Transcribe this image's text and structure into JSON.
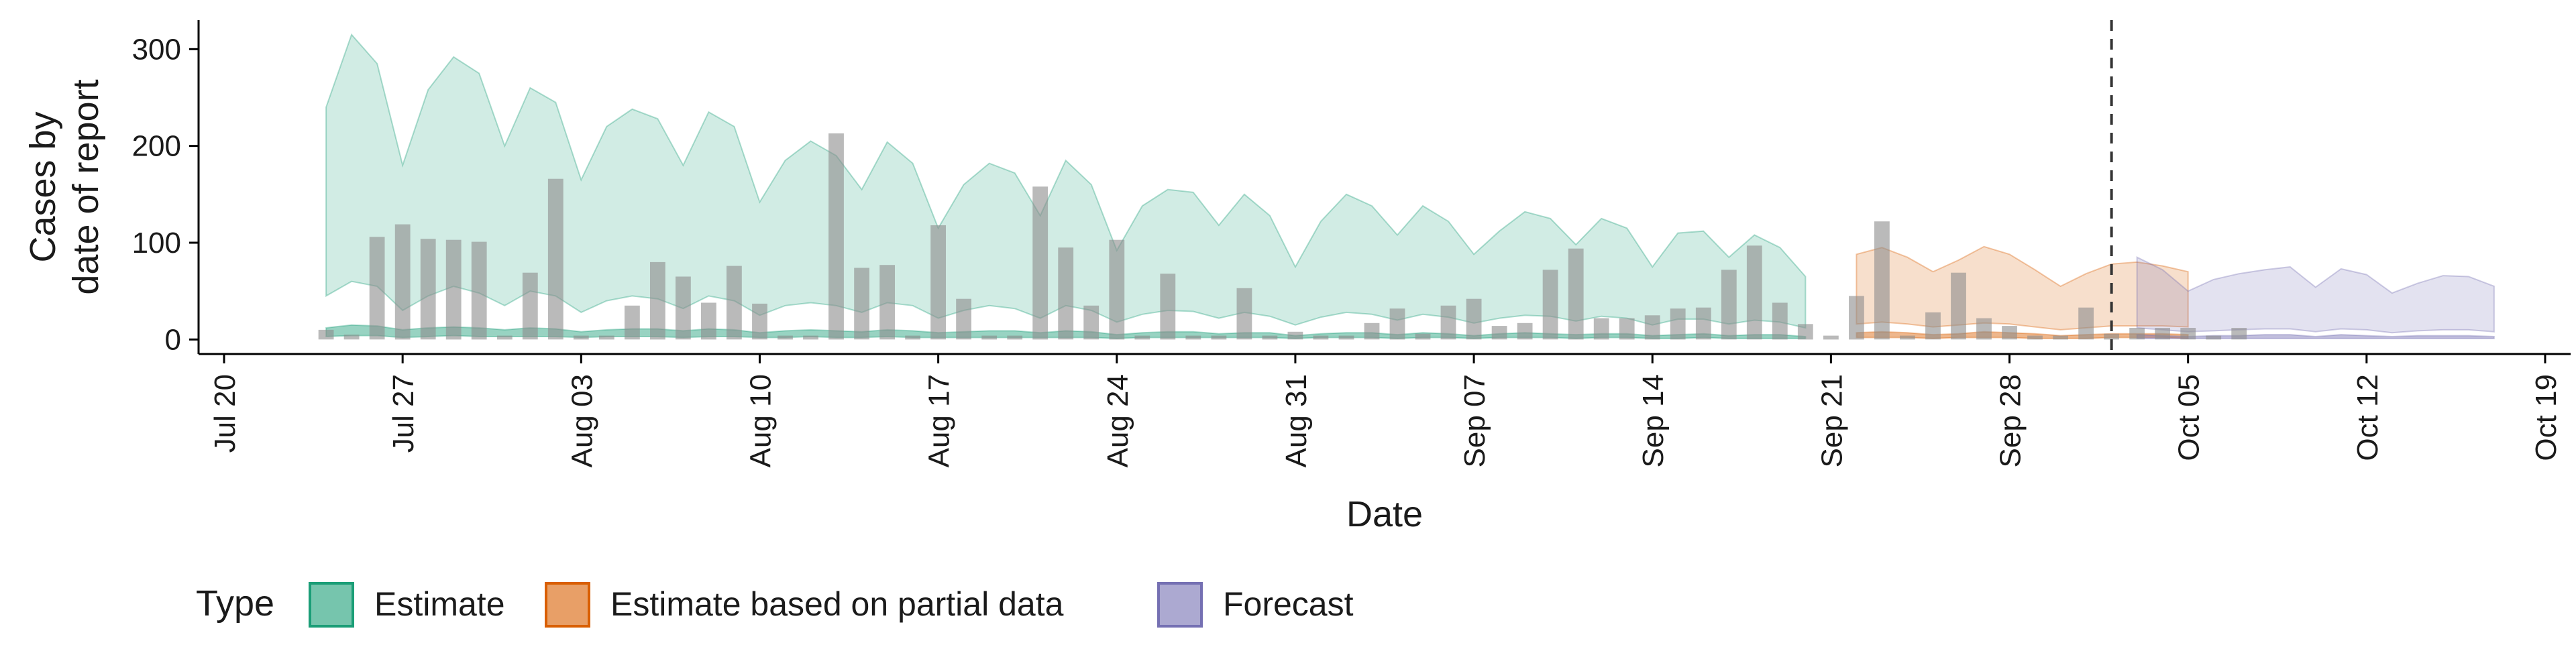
{
  "chart_data": {
    "type": "area",
    "xlabel": "Date",
    "ylabel_lines": [
      "Cases by",
      "date of report"
    ],
    "ylim": [
      -15,
      330
    ],
    "xlim": [
      "2020-07-19",
      "2020-10-20"
    ],
    "y_ticks": [
      0,
      100,
      200,
      300
    ],
    "x_ticks": [
      {
        "date": "2020-07-20",
        "label": "Jul 20"
      },
      {
        "date": "2020-07-27",
        "label": "Jul 27"
      },
      {
        "date": "2020-08-03",
        "label": "Aug 03"
      },
      {
        "date": "2020-08-10",
        "label": "Aug 10"
      },
      {
        "date": "2020-08-17",
        "label": "Aug 17"
      },
      {
        "date": "2020-08-24",
        "label": "Aug 24"
      },
      {
        "date": "2020-08-31",
        "label": "Aug 31"
      },
      {
        "date": "2020-09-07",
        "label": "Sep 07"
      },
      {
        "date": "2020-09-14",
        "label": "Sep 14"
      },
      {
        "date": "2020-09-21",
        "label": "Sep 21"
      },
      {
        "date": "2020-09-28",
        "label": "Sep 28"
      },
      {
        "date": "2020-10-05",
        "label": "Oct 05"
      },
      {
        "date": "2020-10-12",
        "label": "Oct 12"
      },
      {
        "date": "2020-10-19",
        "label": "Oct 19"
      }
    ],
    "forecast_date": "2020-10-02",
    "legend": {
      "title": "Type",
      "position": "bottom",
      "items": [
        {
          "label": "Estimate",
          "color": "#1b9e77"
        },
        {
          "label": "Estimate based on partial data",
          "color": "#d95f02"
        },
        {
          "label": "Forecast",
          "color": "#7570b3"
        }
      ]
    },
    "colors": {
      "bars": "#8c8c8c",
      "vline": "#333333",
      "axis": "#000000"
    },
    "bars": {
      "start": "2020-07-24",
      "values": [
        10,
        5,
        106,
        119,
        104,
        103,
        101,
        4,
        69,
        166,
        4,
        4,
        35,
        80,
        65,
        38,
        76,
        37,
        4,
        4,
        213,
        74,
        77,
        4,
        118,
        42,
        4,
        4,
        158,
        95,
        35,
        103,
        4,
        68,
        4,
        4,
        53,
        4,
        8,
        4,
        4,
        17,
        32,
        6,
        35,
        42,
        14,
        17,
        72,
        94,
        22,
        22,
        25,
        32,
        33,
        72,
        97,
        38,
        16,
        4,
        45,
        122,
        4,
        28,
        69,
        22,
        14,
        4,
        4,
        33,
        6,
        12,
        12,
        12,
        4,
        12
      ]
    },
    "bands": [
      {
        "type": "Estimate",
        "start": "2020-07-24",
        "upper90": [
          240,
          315,
          285,
          180,
          258,
          292,
          275,
          200,
          260,
          245,
          165,
          220,
          238,
          228,
          180,
          235,
          220,
          142,
          185,
          205,
          190,
          155,
          204,
          182,
          115,
          160,
          182,
          172,
          128,
          185,
          160,
          92,
          138,
          155,
          152,
          118,
          150,
          128,
          75,
          122,
          150,
          138,
          108,
          138,
          122,
          88,
          112,
          132,
          125,
          98,
          125,
          115,
          75,
          110,
          112,
          85,
          108,
          95,
          65
        ],
        "lower90": [
          45,
          60,
          55,
          30,
          45,
          55,
          48,
          35,
          50,
          45,
          28,
          40,
          45,
          42,
          32,
          45,
          40,
          25,
          35,
          38,
          35,
          28,
          38,
          35,
          22,
          30,
          35,
          32,
          22,
          35,
          30,
          18,
          26,
          30,
          29,
          22,
          28,
          24,
          15,
          23,
          28,
          26,
          20,
          26,
          23,
          17,
          22,
          25,
          24,
          19,
          24,
          22,
          15,
          21,
          21,
          16,
          20,
          18,
          12
        ],
        "upper50": [
          12,
          15,
          14,
          10,
          12,
          13,
          12,
          10,
          12,
          11,
          8,
          10,
          11,
          11,
          9,
          11,
          10,
          7,
          9,
          10,
          9,
          8,
          10,
          9,
          7,
          8,
          9,
          9,
          7,
          9,
          8,
          5,
          7,
          8,
          8,
          6,
          7,
          7,
          4,
          6,
          7,
          7,
          5,
          7,
          6,
          4,
          6,
          7,
          6,
          5,
          6,
          6,
          4,
          5,
          6,
          4,
          5,
          5,
          3
        ],
        "lower50": [
          3,
          4,
          4,
          2,
          3,
          4,
          3,
          3,
          3,
          3,
          2,
          3,
          3,
          3,
          2,
          3,
          3,
          2,
          2,
          3,
          2,
          2,
          3,
          2,
          2,
          2,
          2,
          2,
          2,
          2,
          2,
          1,
          2,
          2,
          2,
          2,
          2,
          2,
          1,
          2,
          2,
          2,
          1,
          2,
          2,
          1,
          2,
          2,
          2,
          1,
          2,
          2,
          1,
          1,
          2,
          1,
          1,
          1,
          1
        ]
      },
      {
        "type": "Estimate based on partial data",
        "start": "2020-09-22",
        "upper90": [
          88,
          95,
          85,
          70,
          82,
          96,
          88,
          72,
          55,
          68,
          78,
          80,
          76,
          70
        ],
        "lower90": [
          16,
          18,
          16,
          13,
          15,
          17,
          16,
          13,
          10,
          12,
          14,
          14,
          14,
          13
        ],
        "upper50": [
          7,
          8,
          7,
          5,
          6,
          8,
          7,
          6,
          4,
          5,
          6,
          6,
          6,
          5
        ],
        "lower50": [
          2,
          2,
          2,
          1,
          2,
          2,
          2,
          1,
          1,
          1,
          2,
          2,
          2,
          1
        ]
      },
      {
        "type": "Forecast",
        "start": "2020-10-03",
        "upper90": [
          85,
          72,
          50,
          62,
          68,
          72,
          75,
          54,
          73,
          67,
          48,
          58,
          66,
          65,
          55
        ],
        "lower90": [
          12,
          10,
          8,
          9,
          10,
          11,
          11,
          8,
          11,
          10,
          7,
          9,
          10,
          10,
          8
        ],
        "upper50": [
          5,
          4,
          3,
          4,
          4,
          5,
          5,
          3,
          5,
          4,
          3,
          4,
          4,
          4,
          3
        ],
        "lower50": [
          1,
          1,
          1,
          1,
          1,
          1,
          1,
          1,
          1,
          1,
          1,
          1,
          1,
          1,
          1
        ]
      }
    ]
  }
}
